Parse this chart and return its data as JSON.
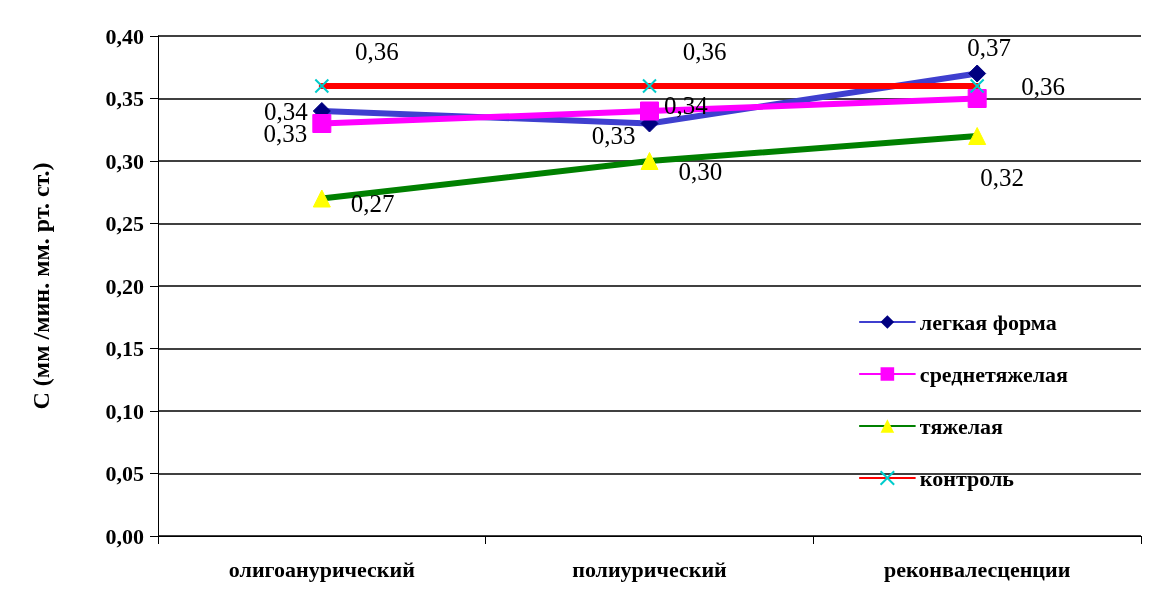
{
  "chart_data": {
    "type": "line",
    "ylabel": "С (мм /мин. мм. рт. ст.)",
    "categories": [
      "олигоанурический",
      "полиурический",
      "реконвалесценции"
    ],
    "series": [
      {
        "name": "легкая форма",
        "color": "#3f3fcf",
        "marker": "diamond",
        "colors": [
          "#000080",
          "#000080",
          "#000080"
        ],
        "values": [
          0.34,
          0.33,
          0.37
        ],
        "value_labels": [
          "0,34",
          "0,33",
          "0,37"
        ]
      },
      {
        "name": "среднетяжелая",
        "color": "#ff00ff",
        "marker": "square",
        "colors": [
          "#ff00ff",
          "#ff00ff",
          "#ff00ff"
        ],
        "values": [
          0.33,
          0.34,
          0.35
        ],
        "value_labels": [
          "0,33",
          "0,34",
          null
        ]
      },
      {
        "name": "тяжелая",
        "color": "#008000",
        "marker": "triangle",
        "colors": [
          "#ffff00",
          "#ffff00",
          "#ffff00"
        ],
        "values": [
          0.27,
          0.3,
          0.32
        ],
        "value_labels": [
          "0,27",
          "0,30",
          "0,32"
        ]
      },
      {
        "name": "контроль",
        "color": "#ff0000",
        "marker": "cross",
        "colors": [
          "#00cccc",
          "#00cccc",
          "#00cccc"
        ],
        "values": [
          0.36,
          0.36,
          0.36
        ],
        "value_labels": [
          "0,36",
          "0,36",
          "0,36"
        ]
      }
    ],
    "ylim": [
      0,
      0.4
    ],
    "yticks": [
      {
        "value": 0,
        "label": "0,00"
      },
      {
        "value": 0.05,
        "label": "0,05"
      },
      {
        "value": 0.1,
        "label": "0,10"
      },
      {
        "value": 0.15,
        "label": "0,15"
      },
      {
        "value": 0.2,
        "label": "0,20"
      },
      {
        "value": 0.25,
        "label": "0,25"
      },
      {
        "value": 0.3,
        "label": "0,30"
      },
      {
        "value": 0.35,
        "label": "0,35"
      },
      {
        "value": 0.4,
        "label": "0,40"
      }
    ],
    "grid": "y",
    "legend": "right",
    "line_style": "solid"
  }
}
